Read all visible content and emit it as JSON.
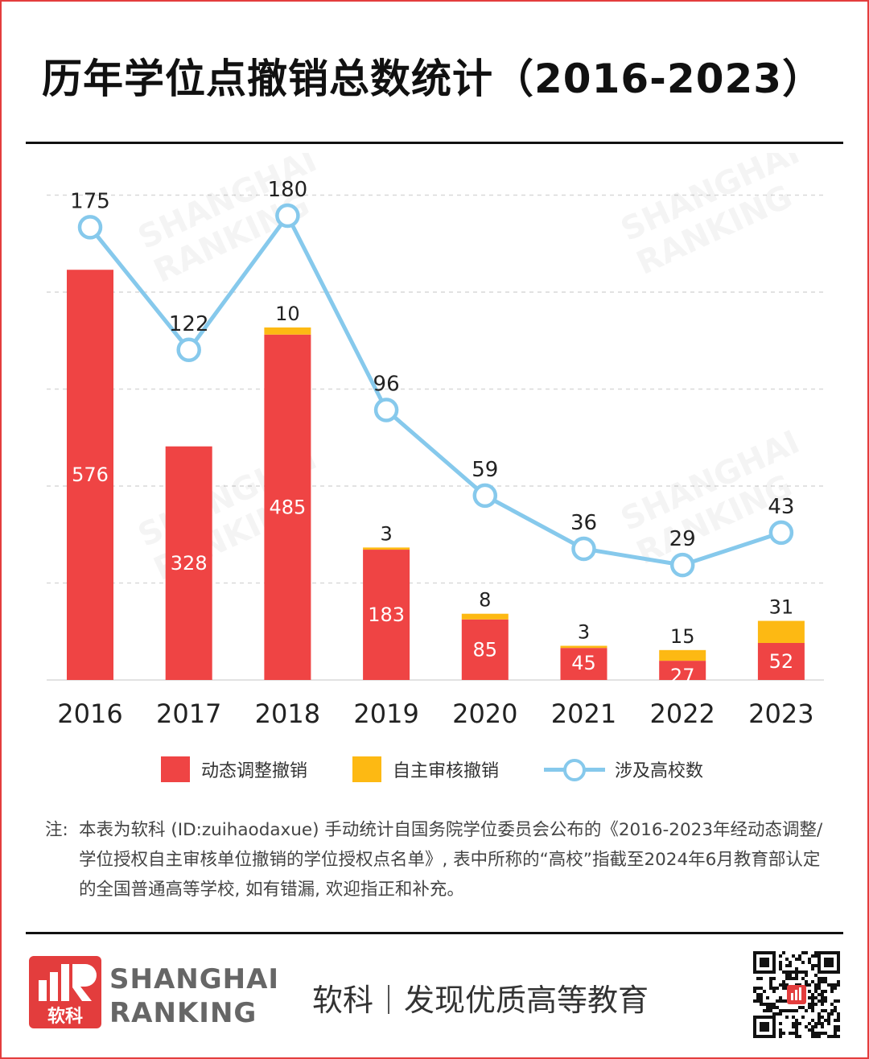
{
  "title": "历年学位点撤销总数统计（2016-2023）",
  "chart_data": {
    "type": "bar+line",
    "categories": [
      "2016",
      "2017",
      "2018",
      "2019",
      "2020",
      "2021",
      "2022",
      "2023"
    ],
    "series": [
      {
        "name": "动态调整撤销",
        "type": "stacked-bar",
        "color": "#ef4444",
        "values": [
          576,
          328,
          485,
          183,
          85,
          45,
          27,
          52
        ]
      },
      {
        "name": "自主审核撤销",
        "type": "stacked-bar",
        "color": "#fdb913",
        "values": [
          0,
          0,
          10,
          3,
          8,
          3,
          15,
          31
        ]
      },
      {
        "name": "涉及高校数",
        "type": "line",
        "color": "#86c9ec",
        "values": [
          175,
          122,
          180,
          96,
          59,
          36,
          29,
          43
        ]
      }
    ],
    "top_labels": [
      "",
      "",
      "10",
      "3",
      "8",
      "3",
      "15",
      "31"
    ],
    "grid": true
  },
  "legend": {
    "bar1": "动态调整撤销",
    "bar2": "自主审核撤销",
    "line": "涉及高校数"
  },
  "note": {
    "head": "注:",
    "body": "本表为软科 (ID:zuihaodaxue) 手动统计自国务院学位委员会公布的《2016-2023年经动态调整/学位授权自主审核单位撤销的学位授权点名单》, 表中所称的“高校”指截至2024年6月教育部认定的全国普通高等学校, 如有错漏, 欢迎指正和补充。"
  },
  "footer": {
    "logo_cn": "软科",
    "brand_line1": "SHANGHAI",
    "brand_line2": "RANKING",
    "slogan_a": "软科",
    "slogan_b": "发现优质高等教育"
  },
  "watermark": {
    "line1": "SHANGHAI",
    "line2": "RANKING"
  },
  "colors": {
    "frame": "#e33d3d",
    "bar_dynamic": "#ef4444",
    "bar_self": "#fdb913",
    "line": "#86c9ec"
  }
}
